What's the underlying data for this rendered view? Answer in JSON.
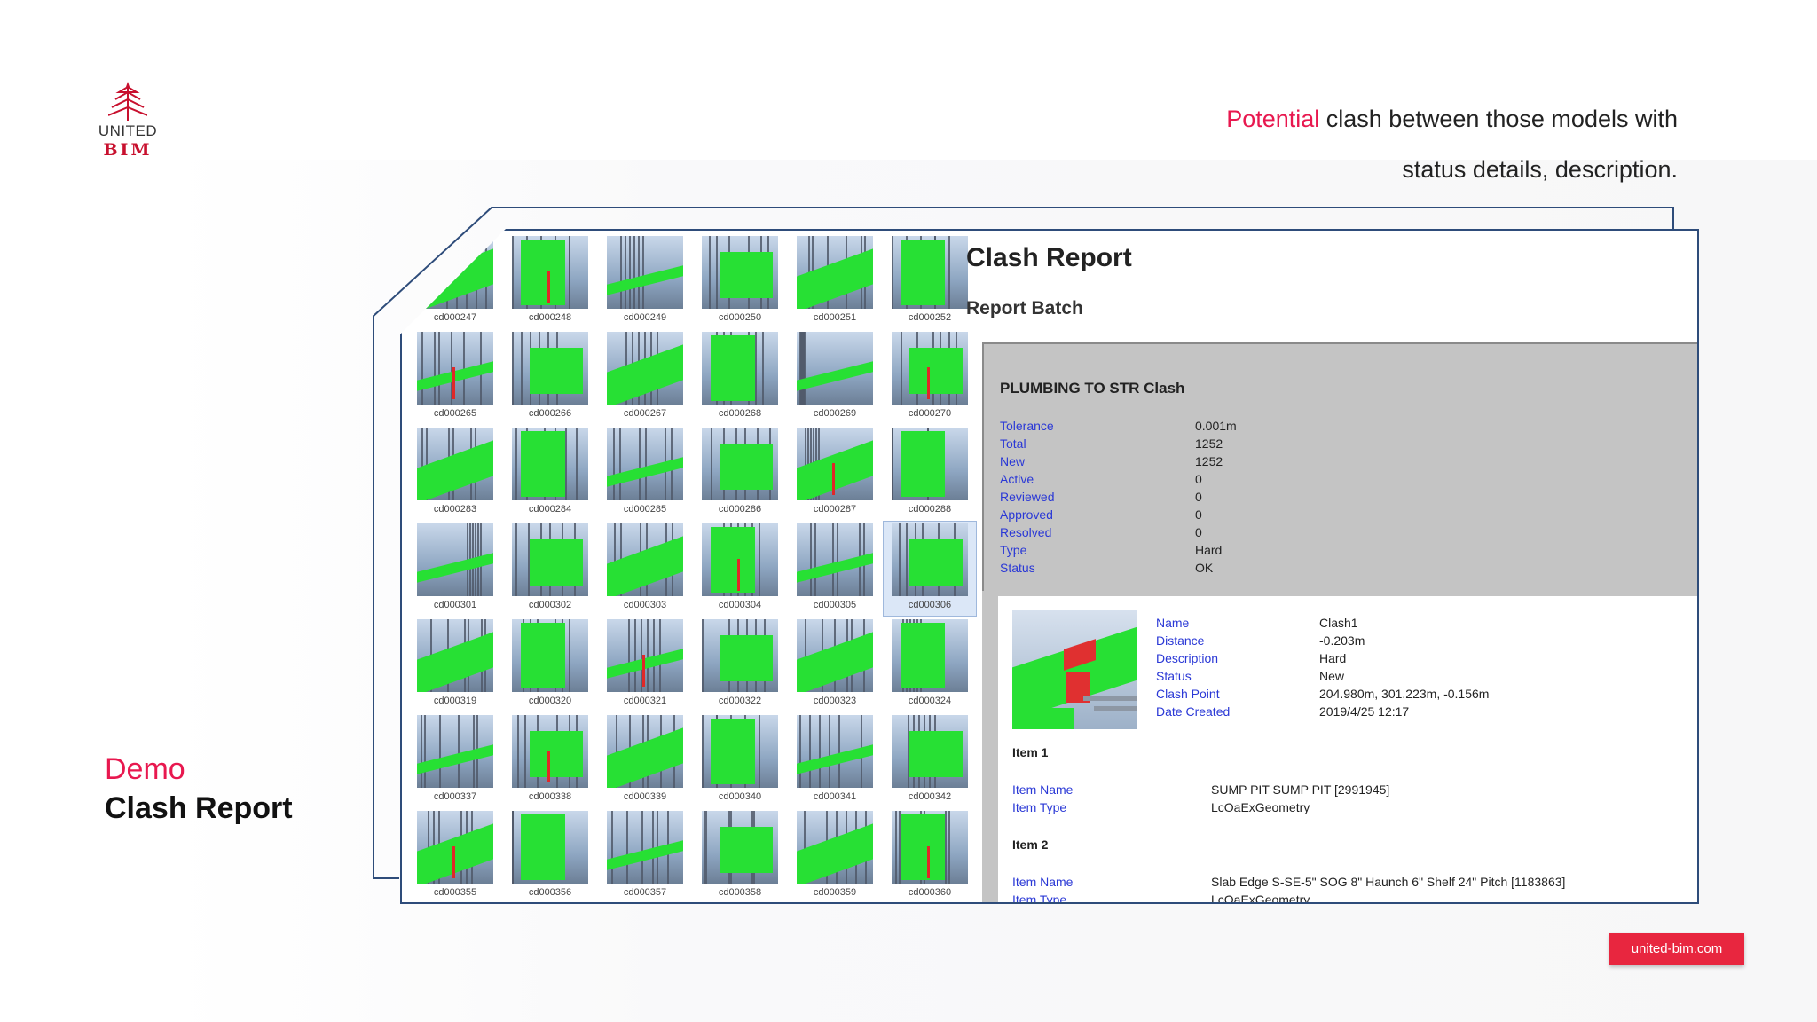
{
  "brand": {
    "united": "UNITED",
    "bim": "BIM",
    "url": "united-bim.com"
  },
  "headline": {
    "accent": "Potential",
    "rest1": " clash between those models with",
    "line2": "status details, description."
  },
  "demo": {
    "label": "Demo",
    "title": "Clash Report"
  },
  "thumbnails": [
    "cd000247",
    "cd000248",
    "cd000249",
    "cd000250",
    "cd000251",
    "cd000252",
    "cd000265",
    "cd000266",
    "cd000267",
    "cd000268",
    "cd000269",
    "cd000270",
    "cd000283",
    "cd000284",
    "cd000285",
    "cd000286",
    "cd000287",
    "cd000288",
    "cd000301",
    "cd000302",
    "cd000303",
    "cd000304",
    "cd000305",
    "cd000306",
    "cd000319",
    "cd000320",
    "cd000321",
    "cd000322",
    "cd000323",
    "cd000324",
    "cd000337",
    "cd000338",
    "cd000339",
    "cd000340",
    "cd000341",
    "cd000342",
    "cd000355",
    "cd000356",
    "cd000357",
    "cd000358",
    "cd000359",
    "cd000360"
  ],
  "selected_thumbnail": "cd000306",
  "report": {
    "title": "Clash Report",
    "subtitle": "Report Batch",
    "test_name": "PLUMBING TO STR Clash",
    "summary": [
      {
        "k": "Tolerance",
        "v": "0.001m"
      },
      {
        "k": "Total",
        "v": "1252"
      },
      {
        "k": "New",
        "v": "1252"
      },
      {
        "k": "Active",
        "v": "0"
      },
      {
        "k": "Reviewed",
        "v": "0"
      },
      {
        "k": "Approved",
        "v": "0"
      },
      {
        "k": "Resolved",
        "v": "0"
      },
      {
        "k": "Type",
        "v": "Hard"
      },
      {
        "k": "Status",
        "v": "OK"
      }
    ],
    "clash": [
      {
        "k": "Name",
        "v": "Clash1"
      },
      {
        "k": "Distance",
        "v": "-0.203m"
      },
      {
        "k": "Description",
        "v": "Hard"
      },
      {
        "k": "Status",
        "v": "New"
      },
      {
        "k": "Clash Point",
        "v": "204.980m,  301.223m,  -0.156m"
      },
      {
        "k": "Date Created",
        "v": "2019/4/25  12:17"
      }
    ],
    "item1": {
      "heading": "Item 1",
      "fields": [
        {
          "k": "Item Name",
          "v": "SUMP PIT SUMP PIT [2991945]"
        },
        {
          "k": "Item Type",
          "v": "LcOaExGeometry"
        }
      ]
    },
    "item2": {
      "heading": "Item 2",
      "fields": [
        {
          "k": "Item Name",
          "v": "Slab Edge S-SE-5\" SOG 8\" Haunch 6\" Shelf 24\" Pitch [1183863]"
        },
        {
          "k": "Item Type",
          "v": "LcOaExGeometry"
        }
      ]
    }
  },
  "colors": {
    "accent": "#e8184f",
    "frame": "#2e4c7a",
    "clash_green": "#27e034",
    "label_blue": "#2a38d6",
    "badge": "#e8263f"
  }
}
